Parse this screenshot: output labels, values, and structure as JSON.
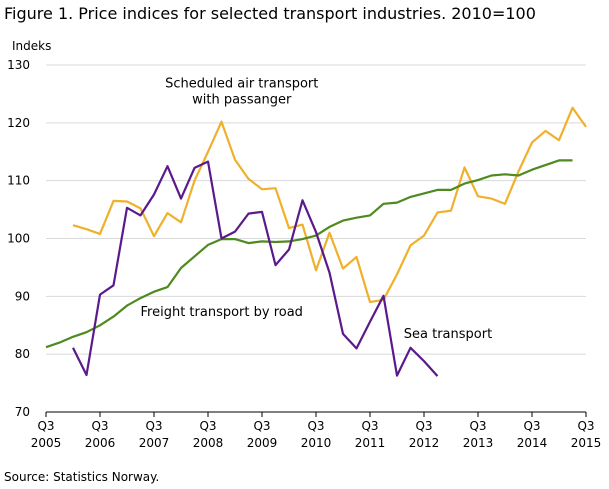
{
  "title": "Figure 1. Price indices for selected transport industries. 2010=100",
  "source": "Source: Statistics Norway.",
  "chart_data": {
    "type": "line",
    "ylabel": "Indeks",
    "ylim": [
      70,
      130
    ],
    "yticks": [
      70,
      80,
      90,
      100,
      110,
      120,
      130
    ],
    "grid": "horizontal",
    "legend": "none",
    "xticks": [
      {
        "q": 0,
        "label_top": "Q3",
        "label_bottom": "2005"
      },
      {
        "q": 4,
        "label_top": "Q3",
        "label_bottom": "2006"
      },
      {
        "q": 8,
        "label_top": "Q3",
        "label_bottom": "2007"
      },
      {
        "q": 12,
        "label_top": "Q3",
        "label_bottom": "2008"
      },
      {
        "q": 16,
        "label_top": "Q3",
        "label_bottom": "2009"
      },
      {
        "q": 20,
        "label_top": "Q3",
        "label_bottom": "2010"
      },
      {
        "q": 24,
        "label_top": "Q3",
        "label_bottom": "2011"
      },
      {
        "q": 28,
        "label_top": "Q3",
        "label_bottom": "2012"
      },
      {
        "q": 32,
        "label_top": "Q3",
        "label_bottom": "2013"
      },
      {
        "q": 36,
        "label_top": "Q3",
        "label_bottom": "2014"
      },
      {
        "q": 40,
        "label_top": "Q3",
        "label_bottom": "2015"
      }
    ],
    "series": [
      {
        "name": "Scheduled air transport with passanger",
        "label_lines": [
          "Scheduled air transport",
          "with passanger"
        ],
        "color": "#f0b02b",
        "start_q": 2,
        "values": [
          102.3,
          101.6,
          100.8,
          106.5,
          106.4,
          105.2,
          100.4,
          104.4,
          102.8,
          110.0,
          115.0,
          120.2,
          113.6,
          110.3,
          108.5,
          108.7,
          101.8,
          102.4,
          94.5,
          101.0,
          94.8,
          96.8,
          89.0,
          89.4,
          93.8,
          98.8,
          100.5,
          104.5,
          104.8,
          112.3,
          107.3,
          106.9,
          106.0,
          111.6,
          116.6,
          118.6,
          117.0,
          122.6,
          119.3
        ]
      },
      {
        "name": "Freight transport by road",
        "label_lines": [
          "Freight transport by road"
        ],
        "color": "#4e8a1f",
        "start_q": 0,
        "values": [
          81.2,
          82.0,
          83.0,
          83.8,
          85.0,
          86.5,
          88.4,
          89.7,
          90.8,
          91.6,
          94.9,
          96.9,
          98.9,
          99.9,
          99.9,
          99.2,
          99.5,
          99.4,
          99.5,
          99.9,
          100.5,
          102.0,
          103.1,
          103.6,
          104.0,
          106.0,
          106.2,
          107.2,
          107.8,
          108.4,
          108.4,
          109.5,
          110.1,
          110.9,
          111.1,
          110.9,
          111.9,
          112.7,
          113.5,
          113.5
        ]
      },
      {
        "name": "Sea transport",
        "label_lines": [
          "Sea transport"
        ],
        "color": "#5b1a8c",
        "start_q": 2,
        "values": [
          81.1,
          76.4,
          90.3,
          91.9,
          105.3,
          104.0,
          107.6,
          112.5,
          106.9,
          112.2,
          113.3,
          100.0,
          101.2,
          104.3,
          104.6,
          95.4,
          98.1,
          106.6,
          101.1,
          94.1,
          83.5,
          81.0,
          85.6,
          90.1,
          76.3,
          81.1,
          78.8,
          76.2
        ]
      }
    ]
  }
}
